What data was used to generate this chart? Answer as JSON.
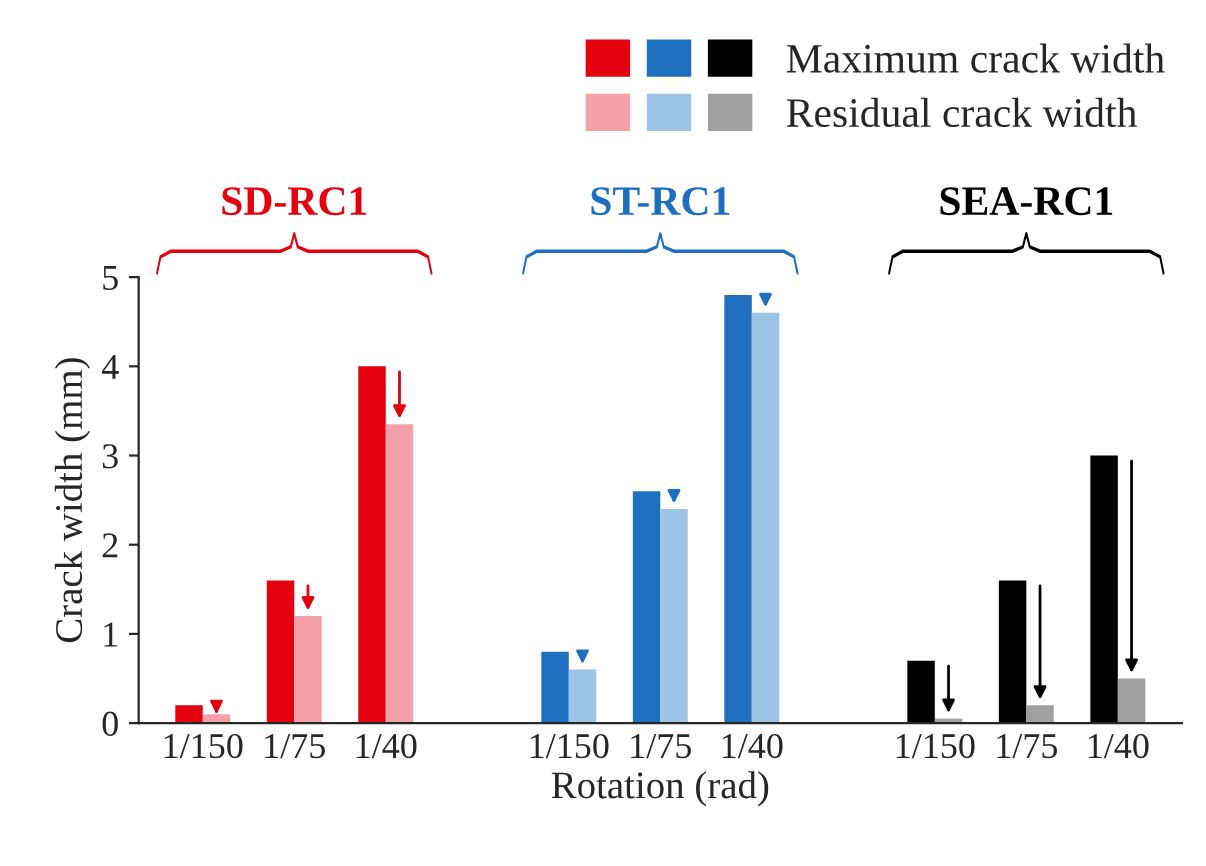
{
  "chart_data": {
    "type": "bar",
    "xlabel": "Rotation (rad)",
    "ylabel": "Crack width (mm)",
    "categories": [
      "1/150",
      "1/75",
      "1/40",
      null,
      "1/150",
      "1/75",
      "1/40",
      null,
      "1/150",
      "1/75",
      "1/40"
    ],
    "series": [
      {
        "name": "Maximum crack width",
        "colors": [
          "#e3000f",
          "#e3000f",
          "#e3000f",
          null,
          "#1f6fbf",
          "#1f6fbf",
          "#1f6fbf",
          null,
          "#000000",
          "#000000",
          "#000000"
        ],
        "values": [
          0.2,
          1.6,
          4.0,
          null,
          0.8,
          2.6,
          4.8,
          null,
          0.7,
          1.6,
          3.0
        ]
      },
      {
        "name": "Residual crack width",
        "colors": [
          "#f4a0a8",
          "#f4a0a8",
          "#f4a0a8",
          null,
          "#9dc3e6",
          "#9dc3e6",
          "#9dc3e6",
          null,
          "#a0a0a0",
          "#a0a0a0",
          "#a0a0a0"
        ],
        "values": [
          0.1,
          1.2,
          3.35,
          null,
          0.6,
          2.4,
          4.6,
          null,
          0.05,
          0.2,
          0.5
        ]
      }
    ],
    "annotations": [
      "SD-RC1",
      "ST-RC1",
      "SEA-RC1"
    ],
    "ylim": [
      0,
      5
    ],
    "yticks": [
      0,
      1,
      2,
      3,
      4,
      5
    ],
    "legend": "top right"
  }
}
